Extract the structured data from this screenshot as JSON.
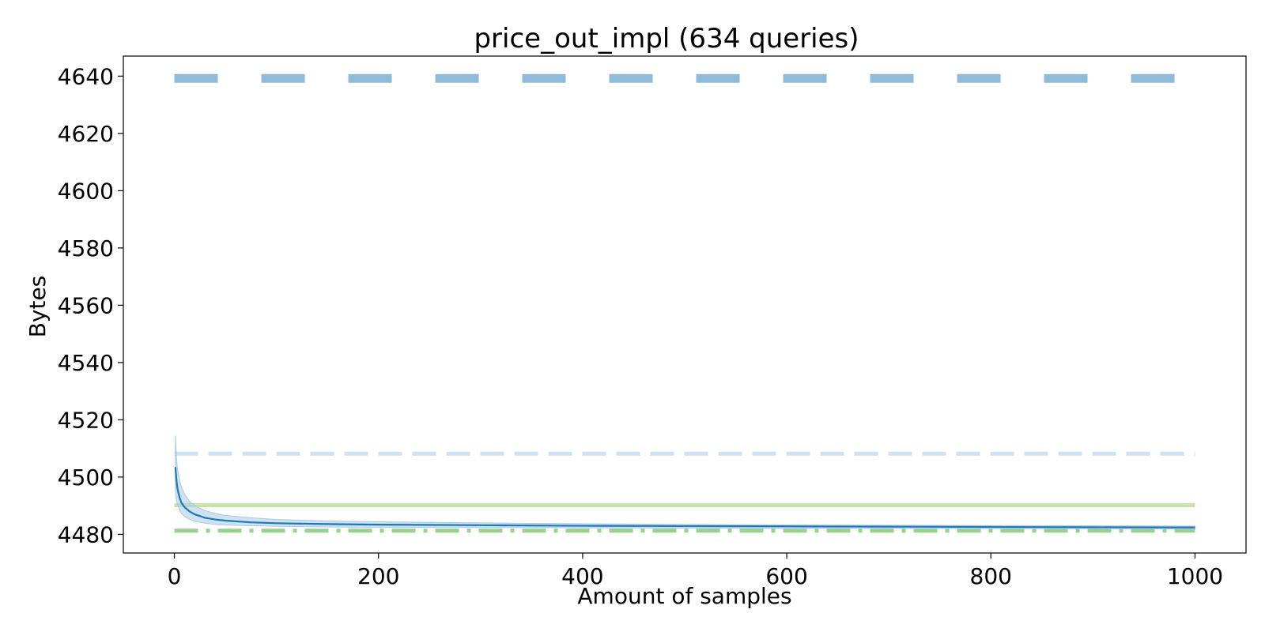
{
  "chart_data": {
    "type": "line",
    "title": "price_out_impl (634 queries)",
    "xlabel": "Amount of samples",
    "ylabel": "Bytes",
    "xlim": [
      -50,
      1050
    ],
    "ylim": [
      4473.5,
      4647
    ],
    "xticks": [
      0,
      200,
      400,
      600,
      800,
      1000
    ],
    "yticks": [
      4480,
      4500,
      4520,
      4540,
      4560,
      4580,
      4600,
      4620,
      4640
    ],
    "grid": false,
    "legend": "none",
    "mean_curve": {
      "color": "#1f77b4",
      "band_color": "#a6cbe6",
      "x": [
        1,
        2,
        3,
        5,
        7,
        10,
        15,
        20,
        30,
        40,
        50,
        75,
        100,
        150,
        200,
        300,
        400,
        500,
        600,
        700,
        800,
        900,
        1000
      ],
      "y": [
        4503.5,
        4499,
        4496,
        4493,
        4491,
        4489.5,
        4488,
        4487,
        4485.8,
        4485.2,
        4484.8,
        4484.2,
        4483.9,
        4483.6,
        4483.4,
        4483.2,
        4483,
        4482.9,
        4482.8,
        4482.7,
        4482.6,
        4482.5,
        4482.4
      ],
      "band_upper": [
        4514.5,
        4507,
        4503,
        4499,
        4496.5,
        4494,
        4491.5,
        4490,
        4488.3,
        4487.3,
        4486.6,
        4485.8,
        4485.2,
        4484.7,
        4484.4,
        4484,
        4483.7,
        4483.5,
        4483.3,
        4483.2,
        4483.1,
        4483,
        4482.9
      ],
      "band_lower": [
        4495,
        4492,
        4490.5,
        4488.5,
        4487.3,
        4486.2,
        4485.2,
        4484.6,
        4483.9,
        4483.5,
        4483.3,
        4483,
        4482.8,
        4482.6,
        4482.5,
        4482.4,
        4482.3,
        4482.2,
        4482.1,
        4482.1,
        4482,
        4482,
        4481.9
      ]
    },
    "reference_lines": [
      {
        "y": 4639.2,
        "style": "dashed",
        "color": "#8fbbd9",
        "width": "thick",
        "x": [
          0,
          1000
        ]
      },
      {
        "y": 4508.2,
        "style": "dashed",
        "color": "#cfe2f1",
        "width": "medium",
        "x": [
          0,
          1000
        ]
      },
      {
        "y": 4490.2,
        "style": "solid",
        "color": "#c7e5aa",
        "width": "medium",
        "x": [
          0,
          1000
        ]
      },
      {
        "y": 4481.3,
        "style": "dashdot",
        "color": "#98d08e",
        "width": "medium",
        "x": [
          0,
          1000
        ]
      }
    ]
  }
}
